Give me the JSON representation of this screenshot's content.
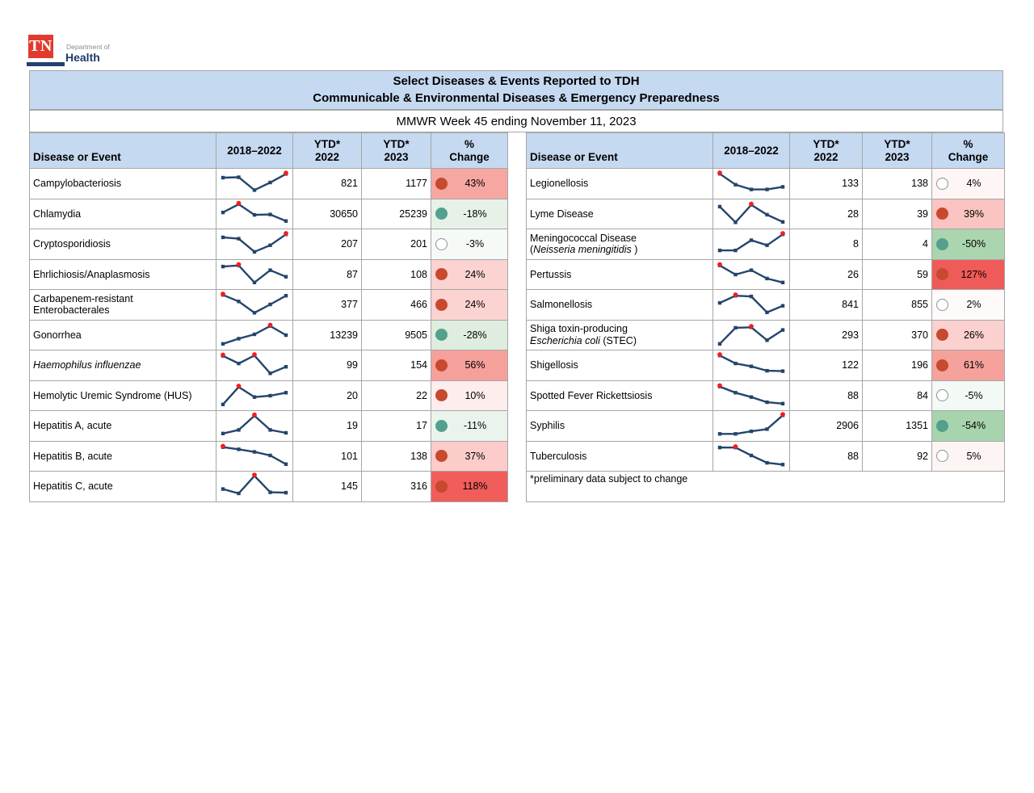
{
  "logo": {
    "tn": "TN",
    "dept": "Department of",
    "health": "Health"
  },
  "title": {
    "line1": "Select Diseases & Events Reported to TDH",
    "line2": "Communicable & Environmental Diseases & Emergency Preparedness",
    "subtitle": "MMWR Week 45 ending November 11, 2023"
  },
  "columns": {
    "disease": "Disease or Event",
    "trend": "2018–2022",
    "ytd_label": "YTD*",
    "year2022": "2022",
    "year2023": "2023",
    "pct_label": "%",
    "change_label": "Change"
  },
  "colors": {
    "header_bg": "#c5d9f1",
    "border": "#a6a6a6",
    "spark_line": "#24456b",
    "spark_marker_red": "#f51d1d",
    "dot_red": "#c7492e",
    "dot_green": "#53a08d",
    "dot_white_fill": "#ffffff",
    "dot_white_border": "#909090",
    "logo_red": "#e23a2e",
    "logo_navy": "#1d3a6d"
  },
  "tables": {
    "left": {
      "rows": [
        {
          "name": [
            [
              {
                "t": "Campylobacteriosis",
                "i": false
              }
            ]
          ],
          "ytd2022": "821",
          "ytd2023": "1177",
          "change": "43%",
          "dot": "red",
          "bg": "#f7a7a2",
          "spark": [
            74,
            76,
            17,
            52,
            91
          ],
          "red": [
            4
          ]
        },
        {
          "name": [
            [
              {
                "t": "Chlamydia",
                "i": false
              }
            ]
          ],
          "ytd2022": "30650",
          "ytd2023": "25239",
          "change": "-18%",
          "dot": "green",
          "bg": "#e7f1e7",
          "spark": [
            55,
            93,
            44,
            46,
            16
          ],
          "red": [
            1
          ]
        },
        {
          "name": [
            [
              {
                "t": "Cryptosporidiosis",
                "i": false
              }
            ]
          ],
          "ytd2022": "207",
          "ytd2023": "201",
          "change": "-3%",
          "dot": "white",
          "bg": "#f6faf6",
          "spark": [
            78,
            72,
            12,
            42,
            92
          ],
          "red": [
            4
          ]
        },
        {
          "name": [
            [
              {
                "t": "Ehrlichiosis/Anaplasmosis",
                "i": false
              }
            ]
          ],
          "ytd2022": "87",
          "ytd2023": "108",
          "change": "24%",
          "dot": "red",
          "bg": "#fbd3d1",
          "spark": [
            85,
            90,
            12,
            68,
            38
          ],
          "red": [
            1
          ]
        },
        {
          "name": [
            [
              {
                "t": "Carbapenem-resistant",
                "i": false
              }
            ],
            [
              {
                "t": "Enterobacterales",
                "i": false
              }
            ]
          ],
          "ytd2022": "377",
          "ytd2023": "466",
          "change": "24%",
          "dot": "red",
          "bg": "#fbd3d1",
          "spark": [
            92,
            62,
            10,
            48,
            88
          ],
          "red": [
            0
          ]
        },
        {
          "name": [
            [
              {
                "t": "Gonorrhea",
                "i": false
              }
            ]
          ],
          "ytd2022": "13239",
          "ytd2023": "9505",
          "change": "-28%",
          "dot": "green",
          "bg": "#dfeddf",
          "spark": [
            8,
            32,
            52,
            90,
            48
          ],
          "red": [
            3
          ]
        },
        {
          "name": [
            [
              {
                "t": "Haemophilus influenzae",
                "i": true
              }
            ]
          ],
          "ytd2022": "99",
          "ytd2023": "154",
          "change": "56%",
          "dot": "red",
          "bg": "#f5a09b",
          "spark": [
            90,
            55,
            92,
            10,
            40
          ],
          "red": [
            0,
            2
          ]
        },
        {
          "name": [
            [
              {
                "t": "Hemolytic Uremic Syndrome (HUS)",
                "i": false
              }
            ]
          ],
          "ytd2022": "20",
          "ytd2023": "22",
          "change": "10%",
          "dot": "red",
          "bg": "#fdedec",
          "spark": [
            8,
            88,
            42,
            48,
            62
          ],
          "red": [
            1
          ]
        },
        {
          "name": [
            [
              {
                "t": "Hepatitis A, acute",
                "i": false
              }
            ]
          ],
          "ytd2022": "19",
          "ytd2023": "17",
          "change": "-11%",
          "dot": "green",
          "bg": "#ebf4ec",
          "spark": [
            12,
            28,
            93,
            28,
            15
          ],
          "red": [
            2
          ]
        },
        {
          "name": [
            [
              {
                "t": "Hepatitis B, acute",
                "i": false
              }
            ]
          ],
          "ytd2022": "101",
          "ytd2023": "138",
          "change": "37%",
          "dot": "red",
          "bg": "#fbccca",
          "spark": [
            90,
            80,
            68,
            52,
            12
          ],
          "red": [
            0
          ]
        },
        {
          "name": [
            [
              {
                "t": "Hepatitis C, acute",
                "i": false
              }
            ]
          ],
          "ytd2022": "145",
          "ytd2023": "316",
          "change": "118%",
          "dot": "red",
          "bg": "#f05d5a",
          "spark": [
            35,
            15,
            95,
            20,
            18
          ],
          "red": [
            2
          ]
        }
      ]
    },
    "right": {
      "rows": [
        {
          "name": [
            [
              {
                "t": "Legionellosis",
                "i": false
              }
            ]
          ],
          "ytd2022": "133",
          "ytd2023": "138",
          "change": "4%",
          "dot": "white",
          "bg": "#fdf6f5",
          "spark": [
            92,
            42,
            20,
            20,
            32
          ],
          "red": [
            0
          ]
        },
        {
          "name": [
            [
              {
                "t": "Lyme Disease",
                "i": false
              }
            ]
          ],
          "ytd2022": "28",
          "ytd2023": "39",
          "change": "39%",
          "dot": "red",
          "bg": "#f9c4c1",
          "spark": [
            82,
            10,
            90,
            45,
            12
          ],
          "red": [
            2
          ]
        },
        {
          "name": [
            [
              {
                "t": "Meningococcal Disease",
                "i": false
              }
            ],
            [
              {
                "t": "(",
                "i": false
              },
              {
                "t": "Neisseria meningitidis",
                "i": true
              },
              {
                "t": " )",
                "i": false
              }
            ]
          ],
          "ytd2022": "8",
          "ytd2023": "4",
          "change": "-50%",
          "dot": "green",
          "bg": "#aad5af",
          "spark": [
            18,
            18,
            65,
            42,
            92
          ],
          "red": [
            4
          ]
        },
        {
          "name": [
            [
              {
                "t": "Pertussis",
                "i": false
              }
            ]
          ],
          "ytd2022": "26",
          "ytd2023": "59",
          "change": "127%",
          "dot": "red",
          "bg": "#ef5b58",
          "spark": [
            90,
            48,
            68,
            30,
            12
          ],
          "red": [
            0
          ]
        },
        {
          "name": [
            [
              {
                "t": "Salmonellosis",
                "i": false
              }
            ]
          ],
          "ytd2022": "841",
          "ytd2023": "855",
          "change": "2%",
          "dot": "white",
          "bg": "#fefafa",
          "spark": [
            55,
            88,
            85,
            12,
            42
          ],
          "red": [
            1
          ]
        },
        {
          "name": [
            [
              {
                "t": "Shiga toxin-producing",
                "i": false
              }
            ],
            [
              {
                "t": "Escherichia coli",
                "i": true
              },
              {
                "t": " (STEC)",
                "i": false
              }
            ]
          ],
          "ytd2022": "293",
          "ytd2023": "370",
          "change": "26%",
          "dot": "red",
          "bg": "#fbd1cf",
          "spark": [
            8,
            82,
            84,
            25,
            72
          ],
          "red": [
            2
          ]
        },
        {
          "name": [
            [
              {
                "t": "Shigellosis",
                "i": false
              }
            ]
          ],
          "ytd2022": "122",
          "ytd2023": "196",
          "change": "61%",
          "dot": "red",
          "bg": "#f5a19c",
          "spark": [
            92,
            55,
            42,
            22,
            20
          ],
          "red": [
            0
          ]
        },
        {
          "name": [
            [
              {
                "t": "Spotted Fever Rickettsiosis",
                "i": false
              }
            ]
          ],
          "ytd2022": "88",
          "ytd2023": "84",
          "change": "-5%",
          "dot": "white",
          "bg": "#f3f9f4",
          "spark": [
            90,
            62,
            42,
            18,
            12
          ],
          "red": [
            0
          ]
        },
        {
          "name": [
            [
              {
                "t": "Syphilis",
                "i": false
              }
            ]
          ],
          "ytd2022": "2906",
          "ytd2023": "1351",
          "change": "-54%",
          "dot": "green",
          "bg": "#a8d4ad",
          "spark": [
            10,
            10,
            22,
            32,
            95
          ],
          "red": [
            4
          ]
        },
        {
          "name": [
            [
              {
                "t": "Tuberculosis",
                "i": false
              }
            ]
          ],
          "ytd2022": "88",
          "ytd2023": "92",
          "change": "5%",
          "dot": "white",
          "bg": "#fdf5f4",
          "spark": [
            88,
            88,
            52,
            18,
            10
          ],
          "red": [
            1
          ]
        }
      ],
      "footnote": "*preliminary data subject to change"
    }
  }
}
